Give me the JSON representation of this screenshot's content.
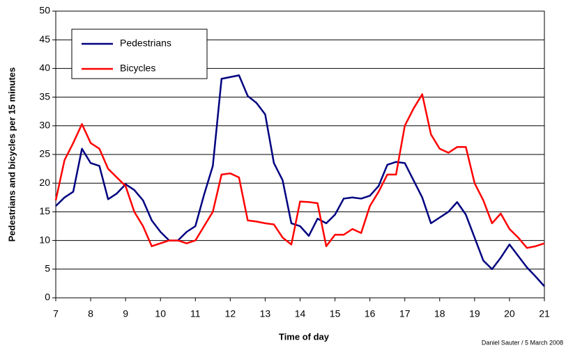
{
  "chart_data": {
    "type": "line",
    "x_label": "Time of day",
    "y_label": "Pedestrians and bicycles per 15 minutes",
    "credit": "Daniel Sauter / 5 March 2008",
    "x": [
      7,
      7.25,
      7.5,
      7.75,
      8,
      8.25,
      8.5,
      8.75,
      9,
      9.25,
      9.5,
      9.75,
      10,
      10.25,
      10.5,
      10.75,
      11,
      11.25,
      11.5,
      11.75,
      12,
      12.25,
      12.5,
      12.75,
      13,
      13.25,
      13.5,
      13.75,
      14,
      14.25,
      14.5,
      14.75,
      15,
      15.25,
      15.5,
      15.75,
      16,
      16.25,
      16.5,
      16.75,
      17,
      17.25,
      17.5,
      17.75,
      18,
      18.25,
      18.5,
      18.75,
      19,
      19.25,
      19.5,
      19.75,
      20,
      20.25,
      20.5,
      20.75,
      21
    ],
    "series": [
      {
        "name": "Pedestrians",
        "color": "#000080",
        "values": [
          16,
          17.5,
          18.5,
          26,
          23.5,
          23,
          17.2,
          18.2,
          19.8,
          18.8,
          17,
          13.5,
          11.5,
          10,
          10,
          11.5,
          12.5,
          18,
          23,
          38.2,
          38.5,
          38.8,
          35.2,
          34,
          32,
          23.5,
          20.5,
          13,
          12.5,
          10.8,
          13.8,
          13,
          14.5,
          17.3,
          17.5,
          17.3,
          17.8,
          19.5,
          23.2,
          23.7,
          23.5,
          20.5,
          17.5,
          13,
          14,
          15,
          16.7,
          14.5,
          10.5,
          6.5,
          5,
          7,
          9.3,
          7.3,
          5.3,
          3.7,
          2
        ]
      },
      {
        "name": "Bicycles",
        "color": "#ff0000",
        "values": [
          17,
          24,
          27,
          30.3,
          27,
          26,
          22.5,
          21,
          19.5,
          15,
          12.5,
          9,
          9.5,
          10,
          10,
          9.5,
          10,
          12.5,
          15,
          21.5,
          21.7,
          21,
          13.5,
          13.3,
          13,
          12.8,
          10.5,
          9.3,
          16.8,
          16.7,
          16.5,
          9,
          11,
          11,
          12,
          11.3,
          16,
          18.5,
          21.5,
          21.5,
          30,
          33,
          35.5,
          28.5,
          26,
          25.3,
          26.3,
          26.3,
          20,
          17,
          13,
          14.7,
          12,
          10.5,
          8.7,
          9,
          9.5
        ]
      }
    ],
    "xlim": [
      7,
      21
    ],
    "xticks": [
      7,
      8,
      9,
      10,
      11,
      12,
      13,
      14,
      15,
      16,
      17,
      18,
      19,
      20,
      21
    ],
    "ylim": [
      0,
      50
    ],
    "yticks": [
      0,
      5,
      10,
      15,
      20,
      25,
      30,
      35,
      40,
      45,
      50
    ],
    "grid": true
  }
}
